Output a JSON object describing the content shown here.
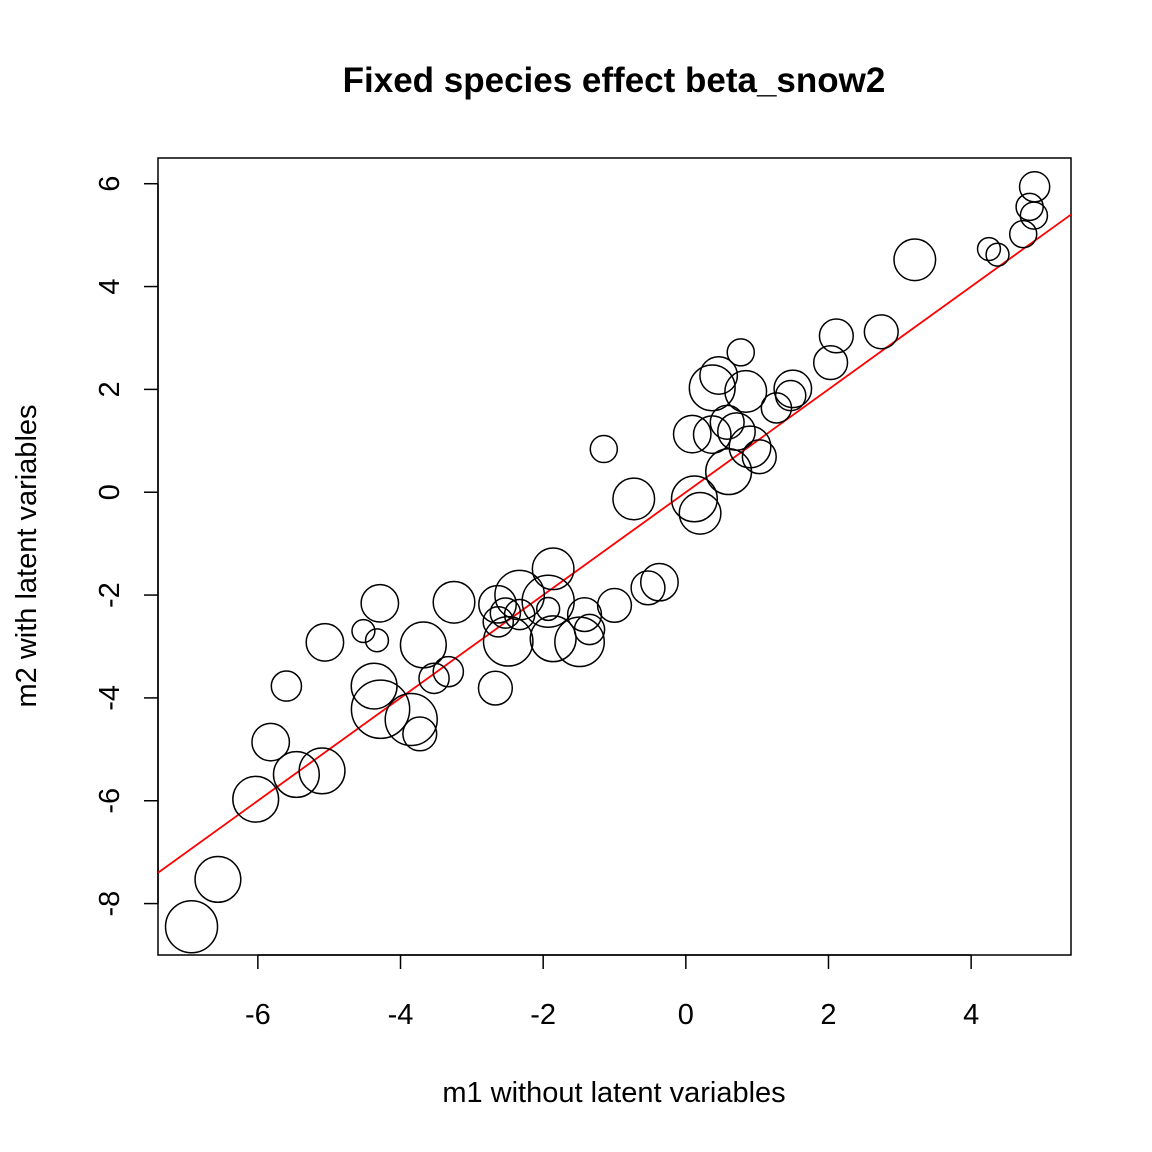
{
  "chart_data": {
    "type": "scatter",
    "title": "Fixed species effect beta_snow2",
    "xlabel": "m1 without latent variables",
    "ylabel": "m2 with latent variables",
    "xlim": [
      -7.4,
      5.4
    ],
    "ylim": [
      -9.0,
      6.5
    ],
    "xticks": [
      -6,
      -4,
      -2,
      0,
      2,
      4
    ],
    "yticks": [
      -8,
      -6,
      -4,
      -2,
      0,
      2,
      4,
      6
    ],
    "xtick_labels": [
      "-6",
      "-4",
      "-2",
      "0",
      "2",
      "4"
    ],
    "ytick_labels": [
      "-8",
      "-6",
      "-4",
      "-2",
      "0",
      "2",
      "4",
      "6"
    ],
    "point_size_note": "circle radius varies by point",
    "points": [
      {
        "x": -6.93,
        "y": -8.45,
        "size": 1.0
      },
      {
        "x": -6.56,
        "y": -7.53,
        "size": 0.88
      },
      {
        "x": -6.03,
        "y": -5.97,
        "size": 0.88
      },
      {
        "x": -5.46,
        "y": -5.49,
        "size": 0.88
      },
      {
        "x": -5.1,
        "y": -5.42,
        "size": 0.88
      },
      {
        "x": -5.82,
        "y": -4.86,
        "size": 0.72
      },
      {
        "x": -5.6,
        "y": -3.77,
        "size": 0.58
      },
      {
        "x": -5.06,
        "y": -2.92,
        "size": 0.72
      },
      {
        "x": -4.52,
        "y": -2.7,
        "size": 0.44
      },
      {
        "x": -4.29,
        "y": -2.16,
        "size": 0.72
      },
      {
        "x": -4.33,
        "y": -2.88,
        "size": 0.44
      },
      {
        "x": -4.37,
        "y": -3.77,
        "size": 0.88
      },
      {
        "x": -4.28,
        "y": -4.22,
        "size": 1.12
      },
      {
        "x": -3.85,
        "y": -4.42,
        "size": 1.0
      },
      {
        "x": -3.73,
        "y": -4.7,
        "size": 0.65
      },
      {
        "x": -3.68,
        "y": -2.97,
        "size": 0.88
      },
      {
        "x": -3.53,
        "y": -3.62,
        "size": 0.58
      },
      {
        "x": -3.33,
        "y": -3.49,
        "size": 0.58
      },
      {
        "x": -3.25,
        "y": -2.14,
        "size": 0.8
      },
      {
        "x": -2.67,
        "y": -3.81,
        "size": 0.65
      },
      {
        "x": -2.64,
        "y": -2.18,
        "size": 0.72
      },
      {
        "x": -2.63,
        "y": -2.52,
        "size": 0.58
      },
      {
        "x": -2.53,
        "y": -2.35,
        "size": 0.58
      },
      {
        "x": -2.49,
        "y": -2.9,
        "size": 0.95
      },
      {
        "x": -2.33,
        "y": -2.38,
        "size": 0.58
      },
      {
        "x": -2.33,
        "y": -2.0,
        "size": 0.95
      },
      {
        "x": -1.93,
        "y": -2.27,
        "size": 0.44
      },
      {
        "x": -1.93,
        "y": -2.12,
        "size": 1.0
      },
      {
        "x": -1.86,
        "y": -1.49,
        "size": 0.8
      },
      {
        "x": -1.86,
        "y": -2.85,
        "size": 0.88
      },
      {
        "x": -1.49,
        "y": -2.91,
        "size": 0.95
      },
      {
        "x": -1.42,
        "y": -2.38,
        "size": 0.65
      },
      {
        "x": -1.35,
        "y": -2.67,
        "size": 0.58
      },
      {
        "x": -1.0,
        "y": -2.2,
        "size": 0.65
      },
      {
        "x": -1.15,
        "y": 0.84,
        "size": 0.52
      },
      {
        "x": -0.73,
        "y": -0.13,
        "size": 0.8
      },
      {
        "x": -0.53,
        "y": -1.86,
        "size": 0.65
      },
      {
        "x": -0.37,
        "y": -1.75,
        "size": 0.72
      },
      {
        "x": 0.12,
        "y": -0.13,
        "size": 0.88
      },
      {
        "x": 0.2,
        "y": -0.41,
        "size": 0.8
      },
      {
        "x": 0.09,
        "y": 1.13,
        "size": 0.72
      },
      {
        "x": 0.37,
        "y": 1.12,
        "size": 0.72
      },
      {
        "x": 0.37,
        "y": 2.03,
        "size": 0.88
      },
      {
        "x": 0.46,
        "y": 2.27,
        "size": 0.72
      },
      {
        "x": 0.58,
        "y": 1.36,
        "size": 0.65
      },
      {
        "x": 0.6,
        "y": 0.4,
        "size": 0.88
      },
      {
        "x": 0.71,
        "y": 1.18,
        "size": 0.72
      },
      {
        "x": 0.77,
        "y": 2.72,
        "size": 0.52
      },
      {
        "x": 0.84,
        "y": 1.96,
        "size": 0.8
      },
      {
        "x": 0.9,
        "y": 0.88,
        "size": 0.8
      },
      {
        "x": 1.03,
        "y": 0.69,
        "size": 0.65
      },
      {
        "x": 1.27,
        "y": 1.64,
        "size": 0.58
      },
      {
        "x": 1.47,
        "y": 1.88,
        "size": 0.58
      },
      {
        "x": 1.5,
        "y": 2.01,
        "size": 0.72
      },
      {
        "x": 2.03,
        "y": 2.52,
        "size": 0.65
      },
      {
        "x": 2.11,
        "y": 3.04,
        "size": 0.65
      },
      {
        "x": 2.74,
        "y": 3.12,
        "size": 0.65
      },
      {
        "x": 3.21,
        "y": 4.52,
        "size": 0.8
      },
      {
        "x": 4.25,
        "y": 4.73,
        "size": 0.44
      },
      {
        "x": 4.37,
        "y": 4.62,
        "size": 0.44
      },
      {
        "x": 4.73,
        "y": 5.02,
        "size": 0.52
      },
      {
        "x": 4.82,
        "y": 5.55,
        "size": 0.52
      },
      {
        "x": 4.88,
        "y": 5.38,
        "size": 0.52
      },
      {
        "x": 4.89,
        "y": 5.94,
        "size": 0.58
      }
    ],
    "fit_line": {
      "intercept": 0.0,
      "slope": 1.0,
      "color": "#ff0000"
    },
    "point_color": "#000000",
    "grid": false,
    "legend": "none"
  }
}
